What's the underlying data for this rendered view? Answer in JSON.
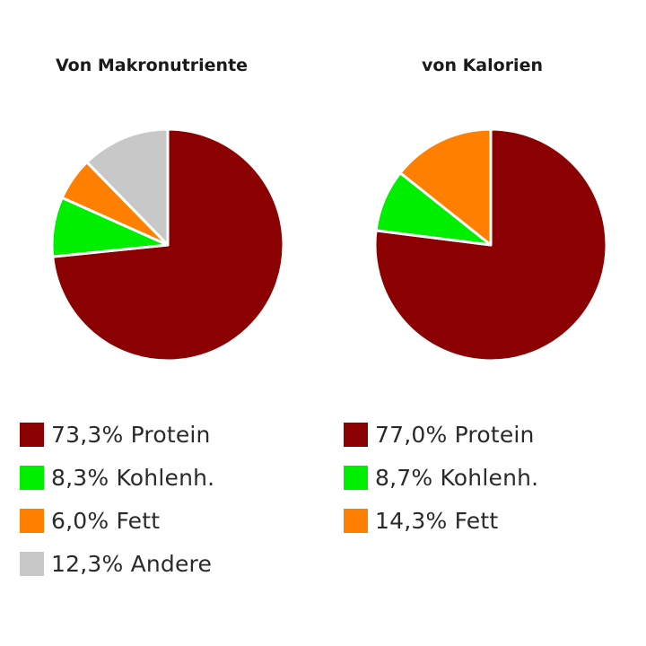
{
  "chart_data": [
    {
      "type": "pie",
      "title": "Von Makronutriente",
      "start_angle_deg": 0,
      "direction": "clockwise",
      "slices": [
        {
          "label": "Protein",
          "value": 73.3,
          "color": "#8b0000",
          "legend": "73,3% Protein"
        },
        {
          "label": "Kohlenh.",
          "value": 8.3,
          "color": "#00ee00",
          "legend": "8,3% Kohlenh."
        },
        {
          "label": "Fett",
          "value": 6.0,
          "color": "#ff8000",
          "legend": "6,0% Fett"
        },
        {
          "label": "Andere",
          "value": 12.3,
          "color": "#c8c8c8",
          "legend": "12,3% Andere"
        }
      ],
      "legend_position": "bottom"
    },
    {
      "type": "pie",
      "title": "von Kalorien",
      "start_angle_deg": 0,
      "direction": "clockwise",
      "slices": [
        {
          "label": "Protein",
          "value": 77.0,
          "color": "#8b0000",
          "legend": "77,0% Protein"
        },
        {
          "label": "Kohlenh.",
          "value": 8.7,
          "color": "#00ee00",
          "legend": "8,7% Kohlenh."
        },
        {
          "label": "Fett",
          "value": 14.3,
          "color": "#ff8000",
          "legend": "14,3% Fett"
        }
      ],
      "legend_position": "bottom"
    }
  ]
}
